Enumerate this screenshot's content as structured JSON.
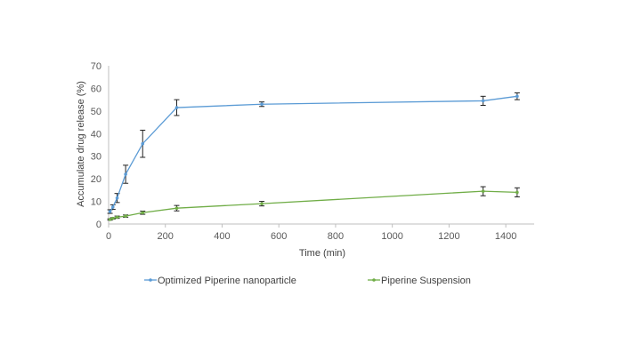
{
  "chart_data": {
    "type": "line",
    "xlabel": "Time (min)",
    "ylabel": "Accumulate drug release (%)",
    "xlim": [
      0,
      1500
    ],
    "ylim": [
      0,
      70
    ],
    "x_ticks": [
      0,
      200,
      400,
      600,
      800,
      1000,
      1200,
      1400
    ],
    "y_ticks": [
      0,
      10,
      20,
      30,
      40,
      50,
      60,
      70
    ],
    "grid": false,
    "legend_position": "bottom",
    "series": [
      {
        "name": "Optimized Piperine nanoparticle",
        "color": "#5B9BD5",
        "x": [
          5,
          15,
          30,
          60,
          120,
          240,
          540,
          1320,
          1440
        ],
        "y": [
          5.5,
          7.5,
          11.5,
          22,
          35.5,
          51.5,
          53,
          54.5,
          56.5
        ],
        "error": [
          0.8,
          1.0,
          2.0,
          4.0,
          6.0,
          3.5,
          1.0,
          2.0,
          1.5
        ]
      },
      {
        "name": "Piperine Suspension",
        "color": "#70AD47",
        "x": [
          5,
          15,
          30,
          60,
          120,
          240,
          540,
          1320,
          1440
        ],
        "y": [
          2,
          2.5,
          3,
          3.5,
          5,
          7,
          9,
          14.5,
          14
        ],
        "error": [
          0.3,
          0.3,
          0.5,
          0.5,
          0.7,
          1.2,
          1.0,
          2.0,
          2.0
        ]
      }
    ]
  }
}
